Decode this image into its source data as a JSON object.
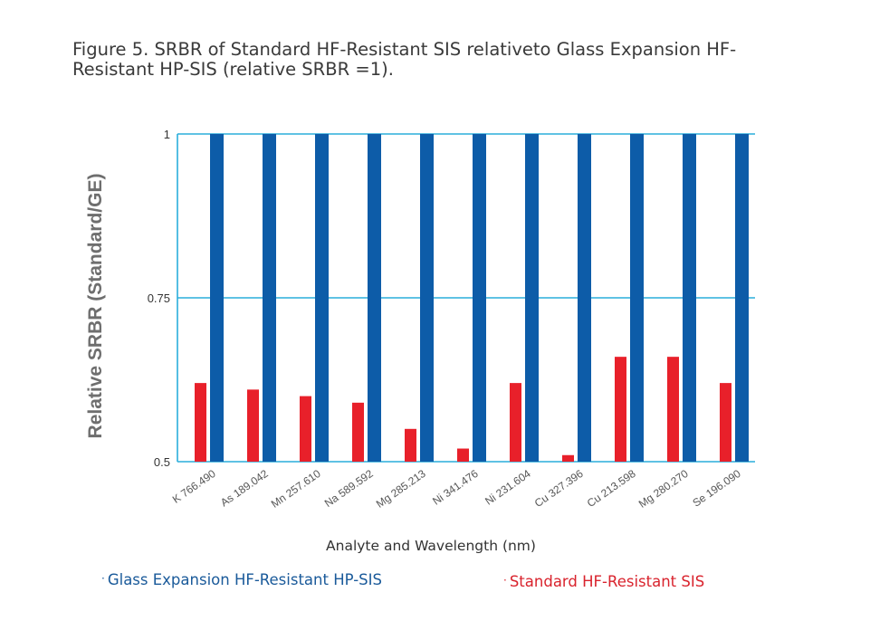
{
  "figure": {
    "title": "Figure 5. SRBR of Standard HF-Resistant SIS relativeto Glass Expansion HF-Resistant HP-SIS (relative SRBR =1)."
  },
  "legend": {
    "glass_label": "Glass Expansion HF-Resistant HP-SIS",
    "standard_label": "Standard HF-Resistant SIS",
    "bullet": "·"
  },
  "colors": {
    "glass": "#0d5ca8",
    "standard": "#e8202a",
    "gridline": "#2aaedc",
    "axis": "#2aaedc"
  },
  "chart_data": {
    "type": "bar",
    "title": "",
    "xlabel": "Analyte and Wavelength (nm)",
    "ylabel": "Relative SRBR (Standard/GE)",
    "ylim": [
      0.5,
      1
    ],
    "yticks": [
      0.5,
      0.75,
      1
    ],
    "ytick_labels": [
      "0.5",
      "0.75",
      "1"
    ],
    "grid": true,
    "legend_position": "bottom",
    "categories": [
      "K 766.490",
      "As 189.042",
      "Mn 257.610",
      "Na 589.592",
      "Mg 285.213",
      "Ni 341.476",
      "Ni 231.604",
      "Cu 327.396",
      "Cu 213.598",
      "Mg 280.270",
      "Se 196.090"
    ],
    "series": [
      {
        "name": "Standard HF-Resistant SIS",
        "values": [
          0.62,
          0.61,
          0.6,
          0.59,
          0.55,
          0.52,
          0.62,
          0.51,
          0.66,
          0.66,
          0.62
        ]
      },
      {
        "name": "Glass Expansion HF-Resistant HP-SIS",
        "values": [
          1,
          1,
          1,
          1,
          1,
          1,
          1,
          1,
          1,
          1,
          1
        ]
      }
    ]
  }
}
